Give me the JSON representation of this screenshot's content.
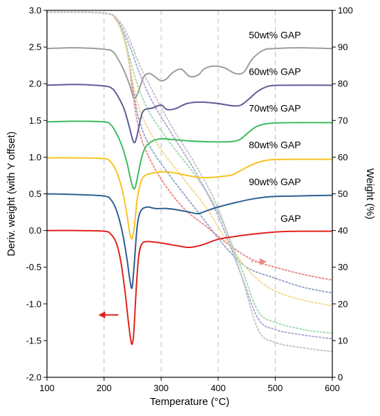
{
  "chart_data": {
    "type": "line",
    "xlabel": "Temperature (°C)",
    "ylabel_left": "Deriv. weight (with Y offset)",
    "ylabel_right": "Weight (%)",
    "xlim": [
      100,
      600
    ],
    "ylim_left": [
      -2.0,
      3.0
    ],
    "ylim_right": [
      0,
      100
    ],
    "x_ticks": [
      100,
      200,
      300,
      400,
      500,
      600
    ],
    "y_ticks_left": [
      -2.0,
      -1.5,
      -1.0,
      -0.5,
      0.0,
      0.5,
      1.0,
      1.5,
      2.0,
      2.5,
      3.0
    ],
    "y_ticks_right": [
      0,
      10,
      20,
      30,
      40,
      50,
      60,
      70,
      80,
      90,
      100
    ],
    "x_tick_labels": [
      "100",
      "200",
      "300",
      "400",
      "500",
      "600"
    ],
    "y_tick_labels_left": [
      "-2.0",
      "-1.5",
      "-1.0",
      "-0.5",
      "0.0",
      "0.5",
      "1.0",
      "1.5",
      "2.0",
      "2.5",
      "3.0"
    ],
    "y_tick_labels_right": [
      "0",
      "10",
      "20",
      "30",
      "40",
      "50",
      "60",
      "70",
      "80",
      "90",
      "100"
    ],
    "vertical_dashed_gridlines_at": [
      200,
      300,
      400,
      500
    ],
    "deriv_series": [
      {
        "name": "50wt% GAP",
        "color": "#9b9b9b",
        "points": [
          [
            100,
            2.48
          ],
          [
            150,
            2.49
          ],
          [
            200,
            2.47
          ],
          [
            215,
            2.44
          ],
          [
            225,
            2.33
          ],
          [
            235,
            2.18
          ],
          [
            245,
            1.98
          ],
          [
            252,
            1.81
          ],
          [
            258,
            1.85
          ],
          [
            264,
            1.98
          ],
          [
            270,
            2.1
          ],
          [
            280,
            2.14
          ],
          [
            290,
            2.09
          ],
          [
            300,
            2.04
          ],
          [
            310,
            2.07
          ],
          [
            320,
            2.15
          ],
          [
            335,
            2.2
          ],
          [
            350,
            2.1
          ],
          [
            365,
            2.12
          ],
          [
            375,
            2.2
          ],
          [
            390,
            2.24
          ],
          [
            410,
            2.22
          ],
          [
            430,
            2.14
          ],
          [
            445,
            2.16
          ],
          [
            460,
            2.34
          ],
          [
            480,
            2.46
          ],
          [
            500,
            2.48
          ],
          [
            540,
            2.49
          ],
          [
            600,
            2.48
          ]
        ]
      },
      {
        "name": "60wt% GAP",
        "color": "#5b5b95",
        "points": [
          [
            100,
            1.98
          ],
          [
            150,
            1.99
          ],
          [
            200,
            1.97
          ],
          [
            215,
            1.93
          ],
          [
            225,
            1.82
          ],
          [
            235,
            1.66
          ],
          [
            244,
            1.42
          ],
          [
            250,
            1.24
          ],
          [
            254,
            1.2
          ],
          [
            258,
            1.3
          ],
          [
            264,
            1.52
          ],
          [
            270,
            1.64
          ],
          [
            285,
            1.67
          ],
          [
            300,
            1.71
          ],
          [
            310,
            1.65
          ],
          [
            325,
            1.66
          ],
          [
            345,
            1.73
          ],
          [
            370,
            1.75
          ],
          [
            400,
            1.73
          ],
          [
            425,
            1.7
          ],
          [
            440,
            1.71
          ],
          [
            455,
            1.8
          ],
          [
            470,
            1.9
          ],
          [
            490,
            1.97
          ],
          [
            520,
            1.98
          ],
          [
            600,
            1.98
          ]
        ]
      },
      {
        "name": "70wt% GAP",
        "color": "#3cba5c",
        "points": [
          [
            100,
            1.48
          ],
          [
            150,
            1.49
          ],
          [
            200,
            1.48
          ],
          [
            212,
            1.44
          ],
          [
            222,
            1.32
          ],
          [
            232,
            1.14
          ],
          [
            240,
            0.93
          ],
          [
            246,
            0.72
          ],
          [
            251,
            0.58
          ],
          [
            255,
            0.6
          ],
          [
            260,
            0.78
          ],
          [
            266,
            1.0
          ],
          [
            273,
            1.14
          ],
          [
            285,
            1.22
          ],
          [
            300,
            1.25
          ],
          [
            320,
            1.24
          ],
          [
            350,
            1.22
          ],
          [
            380,
            1.21
          ],
          [
            420,
            1.21
          ],
          [
            438,
            1.24
          ],
          [
            452,
            1.33
          ],
          [
            468,
            1.42
          ],
          [
            490,
            1.46
          ],
          [
            530,
            1.47
          ],
          [
            600,
            1.47
          ]
        ]
      },
      {
        "name": "80wt% GAP",
        "color": "#f7c21d",
        "points": [
          [
            100,
            0.99
          ],
          [
            150,
            0.99
          ],
          [
            200,
            0.98
          ],
          [
            212,
            0.93
          ],
          [
            222,
            0.8
          ],
          [
            232,
            0.55
          ],
          [
            240,
            0.22
          ],
          [
            245,
            -0.03
          ],
          [
            249,
            -0.11
          ],
          [
            253,
            0.05
          ],
          [
            258,
            0.42
          ],
          [
            264,
            0.65
          ],
          [
            272,
            0.75
          ],
          [
            290,
            0.79
          ],
          [
            305,
            0.8
          ],
          [
            320,
            0.79
          ],
          [
            340,
            0.76
          ],
          [
            360,
            0.73
          ],
          [
            380,
            0.72
          ],
          [
            410,
            0.74
          ],
          [
            425,
            0.76
          ],
          [
            440,
            0.82
          ],
          [
            460,
            0.9
          ],
          [
            480,
            0.95
          ],
          [
            510,
            0.97
          ],
          [
            600,
            0.97
          ]
        ]
      },
      {
        "name": "90wt% GAP",
        "color": "#2c5e8f",
        "points": [
          [
            100,
            0.5
          ],
          [
            150,
            0.49
          ],
          [
            200,
            0.47
          ],
          [
            212,
            0.42
          ],
          [
            222,
            0.27
          ],
          [
            232,
            -0.02
          ],
          [
            240,
            -0.38
          ],
          [
            245,
            -0.66
          ],
          [
            249,
            -0.78
          ],
          [
            253,
            -0.45
          ],
          [
            258,
            0.05
          ],
          [
            264,
            0.26
          ],
          [
            275,
            0.32
          ],
          [
            290,
            0.3
          ],
          [
            310,
            0.3
          ],
          [
            330,
            0.28
          ],
          [
            350,
            0.25
          ],
          [
            365,
            0.23
          ],
          [
            380,
            0.27
          ],
          [
            400,
            0.32
          ],
          [
            430,
            0.38
          ],
          [
            460,
            0.43
          ],
          [
            490,
            0.46
          ],
          [
            530,
            0.47
          ],
          [
            600,
            0.48
          ]
        ]
      },
      {
        "name": "GAP",
        "color": "#e0201b",
        "points": [
          [
            100,
            0.0
          ],
          [
            150,
            0.0
          ],
          [
            200,
            -0.01
          ],
          [
            212,
            -0.05
          ],
          [
            222,
            -0.18
          ],
          [
            230,
            -0.45
          ],
          [
            237,
            -0.85
          ],
          [
            242,
            -1.2
          ],
          [
            246,
            -1.45
          ],
          [
            249,
            -1.55
          ],
          [
            252,
            -1.4
          ],
          [
            256,
            -0.85
          ],
          [
            260,
            -0.4
          ],
          [
            265,
            -0.2
          ],
          [
            275,
            -0.15
          ],
          [
            300,
            -0.17
          ],
          [
            330,
            -0.21
          ],
          [
            350,
            -0.23
          ],
          [
            370,
            -0.2
          ],
          [
            400,
            -0.12
          ],
          [
            430,
            -0.08
          ],
          [
            460,
            -0.05
          ],
          [
            500,
            -0.02
          ],
          [
            540,
            -0.01
          ],
          [
            600,
            -0.01
          ]
        ]
      }
    ],
    "weight_series": [
      {
        "color": "#ef8a8a",
        "points": [
          [
            100,
            99.5
          ],
          [
            200,
            99.2
          ],
          [
            225,
            97
          ],
          [
            240,
            90
          ],
          [
            250,
            78
          ],
          [
            258,
            70
          ],
          [
            270,
            63
          ],
          [
            300,
            54
          ],
          [
            340,
            46
          ],
          [
            380,
            41
          ],
          [
            420,
            36
          ],
          [
            460,
            32
          ],
          [
            500,
            30
          ],
          [
            550,
            28
          ],
          [
            600,
            26.5
          ]
        ]
      },
      {
        "color": "#95a9c8",
        "points": [
          [
            100,
            99.5
          ],
          [
            200,
            99.2
          ],
          [
            225,
            96.5
          ],
          [
            240,
            89
          ],
          [
            250,
            80
          ],
          [
            260,
            71
          ],
          [
            280,
            63
          ],
          [
            320,
            54
          ],
          [
            370,
            44
          ],
          [
            410,
            36
          ],
          [
            450,
            30
          ],
          [
            500,
            27
          ],
          [
            550,
            24.5
          ],
          [
            600,
            23
          ]
        ]
      },
      {
        "color": "#f3d88d",
        "points": [
          [
            100,
            99.5
          ],
          [
            200,
            99.2
          ],
          [
            222,
            97
          ],
          [
            235,
            92
          ],
          [
            245,
            85
          ],
          [
            255,
            77
          ],
          [
            270,
            70
          ],
          [
            300,
            62
          ],
          [
            340,
            54
          ],
          [
            380,
            46
          ],
          [
            420,
            36
          ],
          [
            460,
            28
          ],
          [
            500,
            23.5
          ],
          [
            550,
            21
          ],
          [
            600,
            19.5
          ]
        ]
      },
      {
        "color": "#a6dcb3",
        "points": [
          [
            100,
            99.5
          ],
          [
            200,
            99.3
          ],
          [
            222,
            97.5
          ],
          [
            235,
            93
          ],
          [
            245,
            87
          ],
          [
            258,
            80
          ],
          [
            280,
            72
          ],
          [
            320,
            63
          ],
          [
            360,
            55
          ],
          [
            400,
            45
          ],
          [
            440,
            30
          ],
          [
            470,
            18
          ],
          [
            500,
            15
          ],
          [
            550,
            13
          ],
          [
            600,
            12
          ]
        ]
      },
      {
        "color": "#b0aad3",
        "points": [
          [
            100,
            99.5
          ],
          [
            200,
            99.3
          ],
          [
            222,
            97.5
          ],
          [
            235,
            94
          ],
          [
            248,
            89
          ],
          [
            262,
            83
          ],
          [
            285,
            75
          ],
          [
            320,
            66
          ],
          [
            360,
            56
          ],
          [
            400,
            44
          ],
          [
            440,
            28
          ],
          [
            470,
            16
          ],
          [
            500,
            13
          ],
          [
            550,
            11.5
          ],
          [
            600,
            10.5
          ]
        ]
      },
      {
        "color": "#c6c6c6",
        "points": [
          [
            100,
            99.5
          ],
          [
            200,
            99.3
          ],
          [
            220,
            98
          ],
          [
            232,
            96
          ],
          [
            245,
            92
          ],
          [
            260,
            86
          ],
          [
            285,
            78
          ],
          [
            320,
            68
          ],
          [
            360,
            58
          ],
          [
            400,
            46
          ],
          [
            440,
            28
          ],
          [
            470,
            13
          ],
          [
            500,
            9.5
          ],
          [
            550,
            8
          ],
          [
            600,
            7
          ]
        ]
      }
    ],
    "series_labels": [
      {
        "text": "50wt% GAP",
        "x": 545,
        "y": 2.62
      },
      {
        "text": "60wt% GAP",
        "x": 545,
        "y": 2.12
      },
      {
        "text": "70wt% GAP",
        "x": 545,
        "y": 1.62
      },
      {
        "text": "80wt% GAP",
        "x": 545,
        "y": 1.12
      },
      {
        "text": "90wt% GAP",
        "x": 545,
        "y": 0.62
      },
      {
        "text": "GAP",
        "x": 545,
        "y": 0.12
      }
    ],
    "annotations": [
      {
        "type": "arrow",
        "axis": "left",
        "color": "#e0201b",
        "from": [
          225,
          -1.15
        ],
        "to": [
          190,
          -1.15
        ]
      },
      {
        "type": "arrow",
        "axis": "right",
        "color": "#ef8a8a",
        "from": [
          458,
          31.5
        ],
        "to": [
          485,
          31.5
        ],
        "dashed": true
      }
    ]
  }
}
